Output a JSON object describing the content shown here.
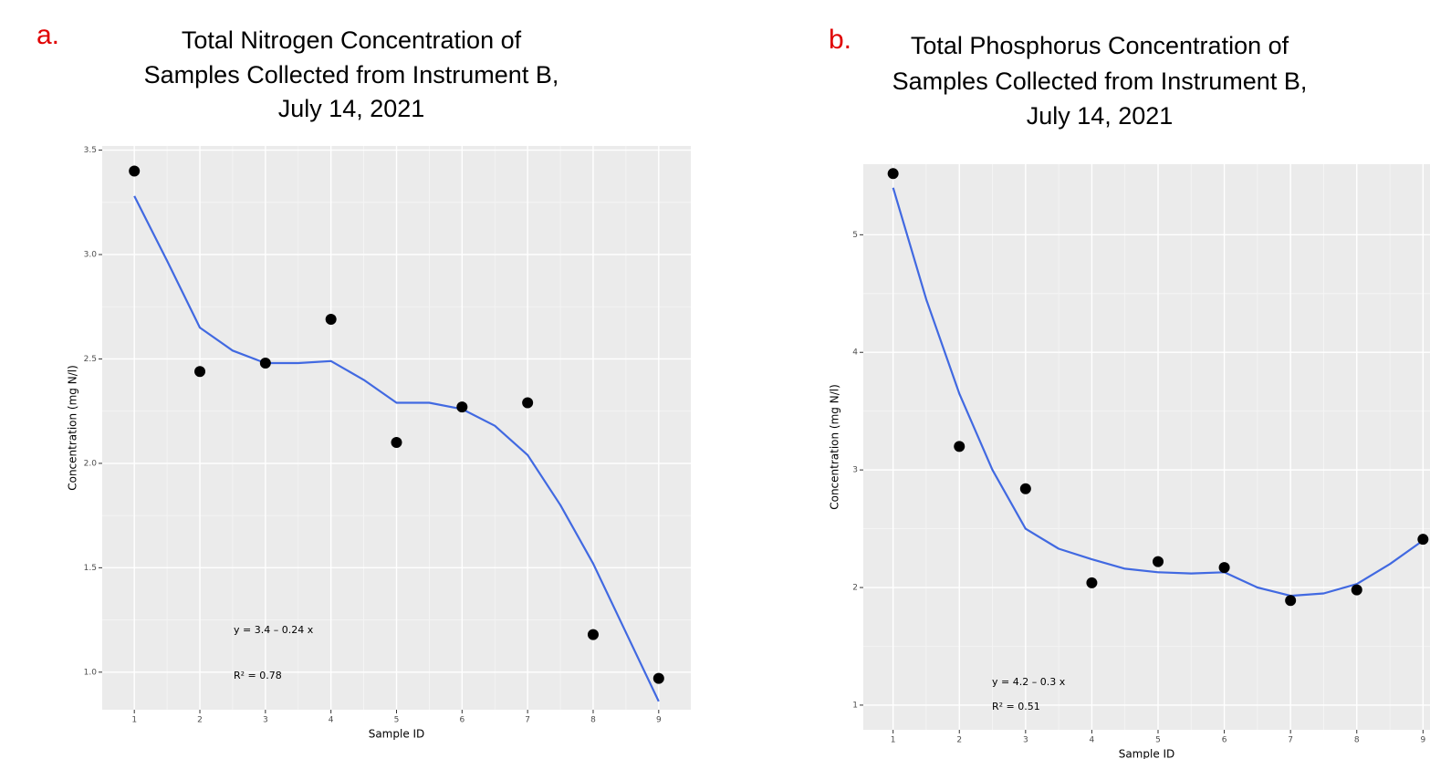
{
  "chart_data": [
    {
      "type": "scatter",
      "panel_label": "a.",
      "title_lines": [
        "Total Nitrogen Concentration of",
        "Samples Collected from Instrument B,",
        "July 14, 2021"
      ],
      "x_label": "Sample ID",
      "y_label": "Concentration (mg N/l)",
      "xlim": [
        0.51,
        9.49
      ],
      "xticks": [
        1,
        2,
        3,
        4,
        5,
        6,
        7,
        8,
        9
      ],
      "ylim": [
        0.82,
        3.52
      ],
      "yticks": [
        {
          "value": 1,
          "label": "1.0"
        },
        1.5,
        {
          "value": 2,
          "label": "2.0"
        },
        2.5,
        {
          "value": 3,
          "label": "3.0"
        },
        3.5
      ],
      "grid": true,
      "points": {
        "color": "#000000",
        "x": [
          1,
          2,
          3,
          4,
          5,
          6,
          7,
          8,
          9
        ],
        "values": [
          3.4,
          2.44,
          2.48,
          2.69,
          2.1,
          2.27,
          2.29,
          1.18,
          0.97
        ]
      },
      "fit": {
        "color": "#4169e1",
        "x": [
          1,
          1.5,
          2,
          2.5,
          3,
          3.5,
          4,
          4.5,
          5,
          5.5,
          6,
          6.5,
          7,
          7.5,
          8,
          8.5,
          9
        ],
        "values": [
          3.28,
          2.97,
          2.65,
          2.54,
          2.48,
          2.48,
          2.49,
          2.4,
          2.29,
          2.29,
          2.26,
          2.18,
          2.04,
          1.8,
          1.52,
          1.19,
          0.86
        ]
      },
      "annotations": [
        "y = 3.4 – 0.24 x",
        "R² = 0.78"
      ]
    },
    {
      "type": "scatter",
      "panel_label": "b.",
      "title_lines": [
        "Total Phosphorus Concentration of",
        "Samples Collected from Instrument B,",
        "July 14, 2021"
      ],
      "x_label": "Sample ID",
      "y_label": "Concentration (mg N/l)",
      "xlim": [
        0.55,
        9.45
      ],
      "xticks": [
        1,
        2,
        3,
        4,
        5,
        6,
        7,
        8,
        9
      ],
      "ylim": [
        0.79,
        5.6
      ],
      "yticks": [
        1,
        2,
        3,
        4,
        5
      ],
      "grid": true,
      "points": {
        "color": "#000000",
        "x": [
          1,
          2,
          3,
          4,
          5,
          6,
          7,
          8,
          9
        ],
        "values": [
          5.52,
          3.2,
          2.84,
          2.04,
          2.22,
          2.17,
          1.89,
          1.98,
          2.41
        ]
      },
      "fit": {
        "color": "#4169e1",
        "x": [
          1,
          1.5,
          2,
          2.5,
          3,
          3.5,
          4,
          4.5,
          5,
          5.5,
          6,
          6.5,
          7,
          7.5,
          8,
          8.5,
          9
        ],
        "values": [
          5.4,
          4.45,
          3.65,
          3.0,
          2.5,
          2.33,
          2.24,
          2.16,
          2.13,
          2.12,
          2.13,
          2.0,
          1.93,
          1.95,
          2.03,
          2.2,
          2.4
        ]
      },
      "annotations": [
        "y = 4.2 – 0.3 x",
        "R² = 0.51"
      ]
    }
  ]
}
